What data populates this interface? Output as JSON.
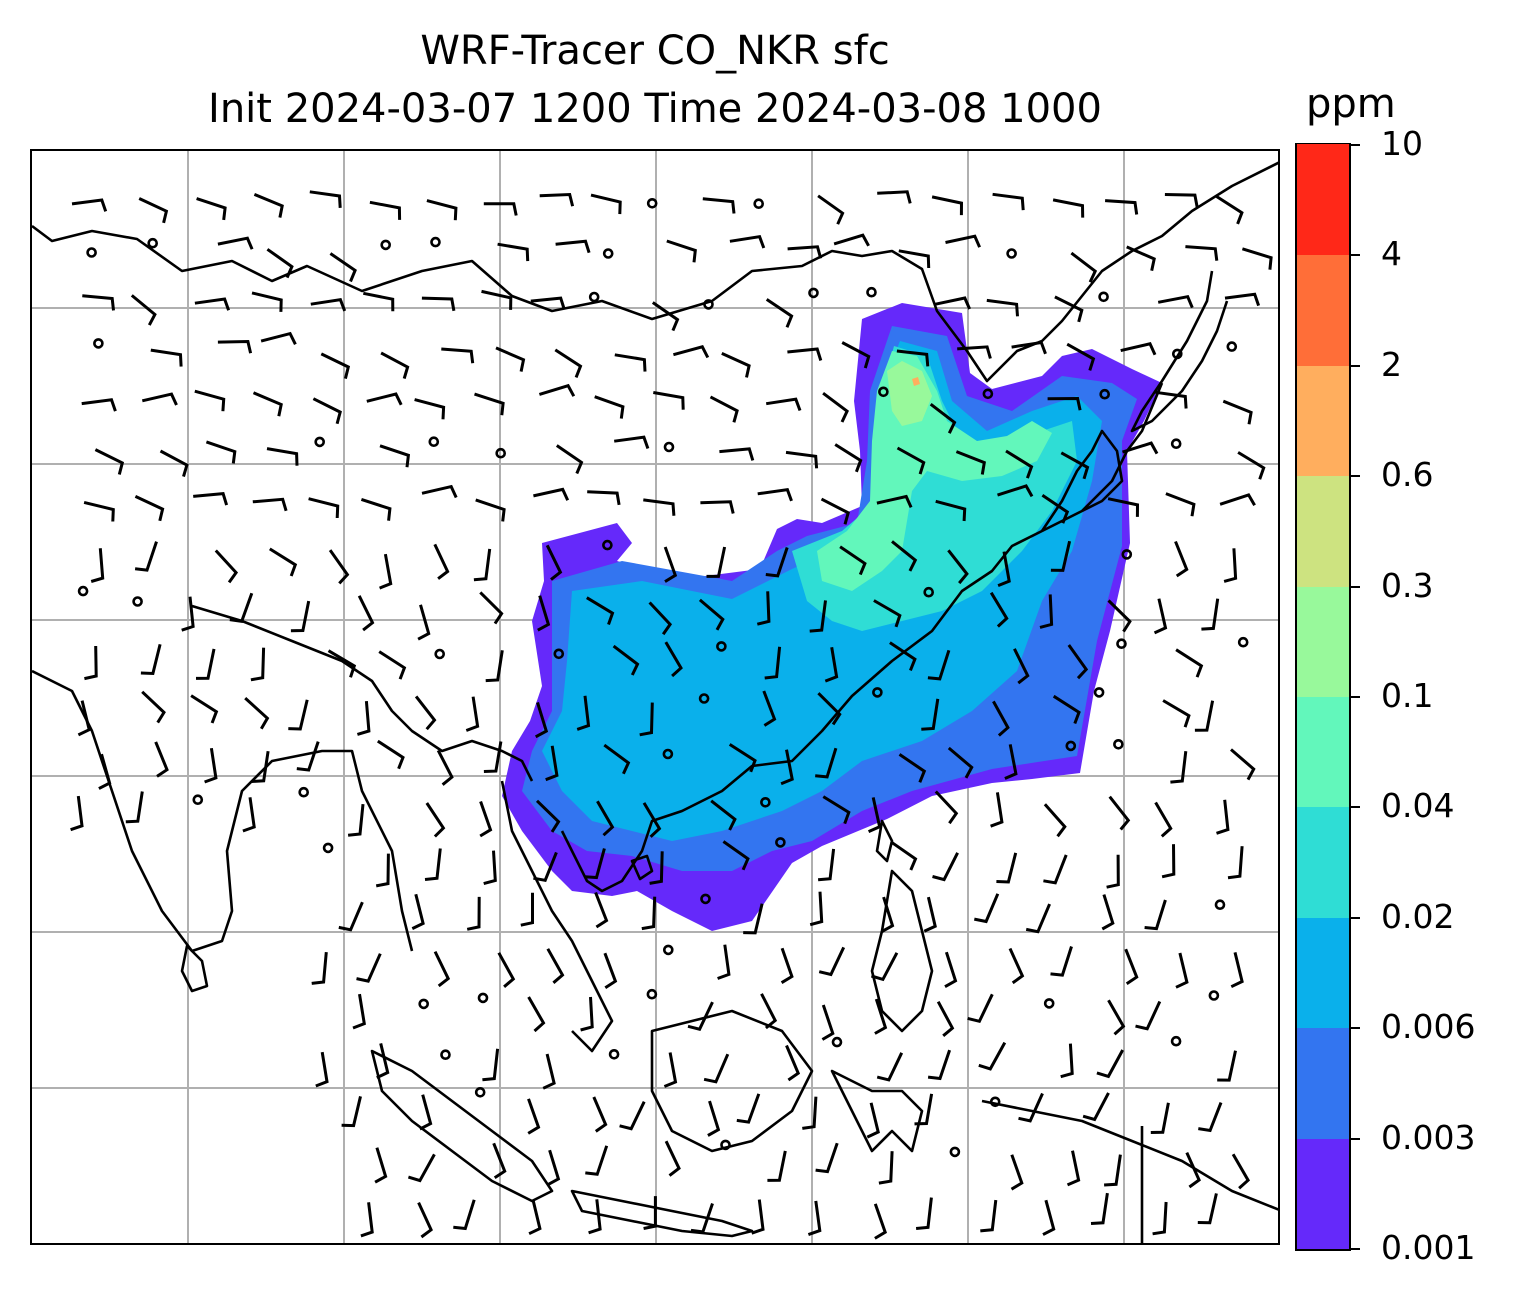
{
  "title": {
    "line1": "WRF-Tracer CO_NKR sfc",
    "line2": "Init 2024-03-07 1200 Time 2024-03-08 1000"
  },
  "map": {
    "variable": "CO_NKR",
    "level": "sfc",
    "overlay": "wind barbs",
    "gridlines": true,
    "colors": {
      "coastline": "#000000",
      "gridline": "#b0b0b0",
      "barb": "#000000"
    }
  },
  "colorbar": {
    "units": "ppm",
    "labels": [
      "0.001",
      "0.003",
      "0.006",
      "0.02",
      "0.04",
      "0.1",
      "0.3",
      "0.6",
      "2",
      "4",
      "10"
    ],
    "colors": [
      "#6529fa",
      "#3375f0",
      "#0ab0eb",
      "#2fddd5",
      "#62f7bb",
      "#98f99b",
      "#cde380",
      "#ffae5e",
      "#ff6e38",
      "#ff2818"
    ]
  }
}
